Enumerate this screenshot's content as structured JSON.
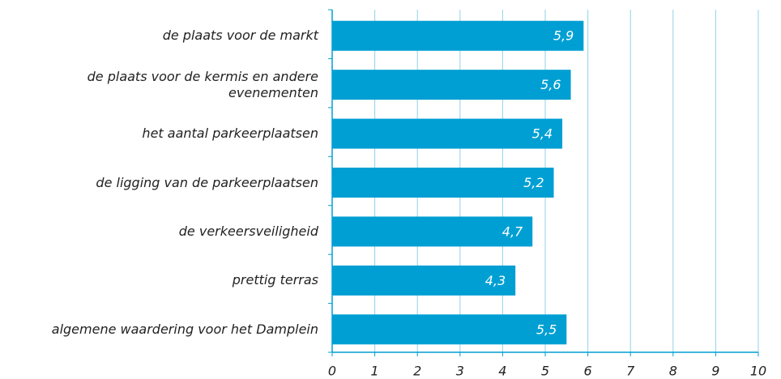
{
  "chart_data": {
    "type": "bar",
    "orientation": "horizontal",
    "categories": [
      "de plaats voor de markt",
      "de plaats voor de kermis en andere evenementen",
      "het aantal parkeerplaatsen",
      "de ligging van de parkeerplaatsen",
      "de verkeersveiligheid",
      "prettig terras",
      "algemene waardering voor het Damplein"
    ],
    "values": [
      5.9,
      5.6,
      5.4,
      5.2,
      4.7,
      4.3,
      5.5
    ],
    "value_labels": [
      "5,9",
      "5,6",
      "5,4",
      "5,2",
      "4,7",
      "4,3",
      "5,5"
    ],
    "color": "#009fd3",
    "xlim": [
      0,
      10
    ],
    "xticks": [
      0,
      1,
      2,
      3,
      4,
      5,
      6,
      7,
      8,
      9,
      10
    ],
    "grid": true
  }
}
